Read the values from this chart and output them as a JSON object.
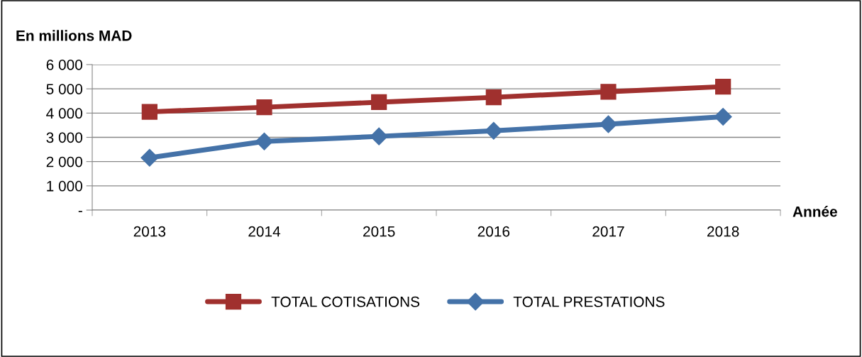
{
  "chart_data": {
    "type": "line",
    "title": "En millions MAD",
    "xlabel": "Année",
    "categories": [
      "2013",
      "2014",
      "2015",
      "2016",
      "2017",
      "2018"
    ],
    "series": [
      {
        "name": "TOTAL COTISATIONS",
        "color": "#a0302e",
        "marker": "square",
        "values": [
          4050,
          4240,
          4450,
          4650,
          4880,
          5090
        ]
      },
      {
        "name": "TOTAL PRESTATIONS",
        "color": "#4472a8",
        "marker": "diamond",
        "values": [
          2160,
          2830,
          3040,
          3270,
          3540,
          3850
        ]
      }
    ],
    "ylim": [
      0,
      6000
    ],
    "yticks": [
      {
        "value": 0,
        "label": "-"
      },
      {
        "value": 1000,
        "label": "1 000"
      },
      {
        "value": 2000,
        "label": "2 000"
      },
      {
        "value": 3000,
        "label": "3 000"
      },
      {
        "value": 4000,
        "label": "4 000"
      },
      {
        "value": 5000,
        "label": "5 000"
      },
      {
        "value": 6000,
        "label": "6 000"
      }
    ],
    "grid": "y",
    "legend": "bottom",
    "line_style": "solid"
  }
}
